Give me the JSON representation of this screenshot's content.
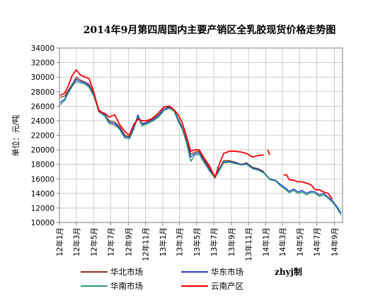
{
  "colors": {
    "huabei": "#8b3a1a",
    "huadong": "#1f3fd6",
    "huanan": "#2e9a6e",
    "yunnan": "#ff0000",
    "grid": "#b0b0b0",
    "axis": "#808080"
  },
  "chart_data": {
    "type": "line",
    "title": "2014年9月第四周国内主要产销区全乳胶现货价格走势图",
    "xlabel": "",
    "ylabel": "单位：元/吨",
    "ylim": [
      10000,
      34000
    ],
    "xlim": [
      "2012-01-01",
      "2014-09-30"
    ],
    "yticks": [
      "34000",
      "32000",
      "30000",
      "28000",
      "26000",
      "24000",
      "22000",
      "20000",
      "18000",
      "16000",
      "14000",
      "12000",
      "10000"
    ],
    "xticks": [
      "12年1月",
      "12年3月",
      "12年5月",
      "12年7月",
      "12年9月",
      "12年11月",
      "13年1月",
      "13年3月",
      "13年5月",
      "13年7月",
      "13年9月",
      "13年11月",
      "14年1月",
      "14年3月",
      "14年5月",
      "14年7月",
      "14年9月"
    ],
    "grid": true,
    "legend_position": "bottom",
    "credit": "zhyj制",
    "series": [
      {
        "name": "华北市场",
        "color_key": "huabei",
        "points": [
          [
            "2012-01-03",
            27200
          ],
          [
            "2012-01-20",
            27400
          ],
          [
            "2012-02-01",
            28200
          ],
          [
            "2012-02-20",
            29300
          ],
          [
            "2012-03-01",
            30000
          ],
          [
            "2012-03-15",
            29600
          ],
          [
            "2012-04-01",
            29300
          ],
          [
            "2012-04-15",
            29000
          ],
          [
            "2012-05-01",
            27800
          ],
          [
            "2012-05-20",
            25500
          ],
          [
            "2012-06-10",
            24800
          ],
          [
            "2012-06-25",
            24000
          ],
          [
            "2012-07-15",
            23800
          ],
          [
            "2012-08-01",
            23200
          ],
          [
            "2012-08-20",
            22000
          ],
          [
            "2012-09-05",
            21800
          ],
          [
            "2012-09-20",
            23000
          ],
          [
            "2012-10-05",
            24500
          ],
          [
            "2012-10-20",
            23600
          ],
          [
            "2012-11-05",
            23800
          ],
          [
            "2012-11-25",
            24200
          ],
          [
            "2012-12-15",
            24700
          ],
          [
            "2013-01-05",
            25600
          ],
          [
            "2013-01-25",
            25800
          ],
          [
            "2013-02-10",
            25500
          ],
          [
            "2013-02-25",
            24200
          ],
          [
            "2013-03-10",
            23200
          ],
          [
            "2013-03-25",
            21500
          ],
          [
            "2013-04-10",
            19400
          ],
          [
            "2013-04-25",
            19700
          ],
          [
            "2013-05-10",
            19800
          ],
          [
            "2013-05-25",
            18800
          ],
          [
            "2013-06-15",
            17500
          ],
          [
            "2013-07-05",
            16400
          ],
          [
            "2013-07-20",
            17400
          ],
          [
            "2013-08-05",
            18500
          ],
          [
            "2013-08-25",
            18500
          ],
          [
            "2013-09-15",
            18300
          ],
          [
            "2013-10-05",
            18000
          ],
          [
            "2013-10-25",
            18200
          ],
          [
            "2013-11-15",
            17600
          ],
          [
            "2013-12-05",
            17400
          ],
          [
            "2013-12-25",
            17000
          ]
        ]
      },
      {
        "name": "华东市场",
        "color_key": "huadong",
        "points": [
          [
            "2012-01-03",
            26500
          ],
          [
            "2012-01-20",
            27000
          ],
          [
            "2012-02-01",
            28000
          ],
          [
            "2012-02-20",
            29200
          ],
          [
            "2012-03-01",
            29700
          ],
          [
            "2012-03-15",
            29400
          ],
          [
            "2012-04-01",
            29200
          ],
          [
            "2012-04-15",
            28800
          ],
          [
            "2012-05-01",
            27600
          ],
          [
            "2012-05-20",
            25400
          ],
          [
            "2012-06-10",
            24800
          ],
          [
            "2012-06-25",
            23800
          ],
          [
            "2012-07-15",
            23600
          ],
          [
            "2012-08-01",
            23000
          ],
          [
            "2012-08-20",
            21800
          ],
          [
            "2012-09-05",
            21700
          ],
          [
            "2012-09-20",
            23000
          ],
          [
            "2012-10-05",
            24800
          ],
          [
            "2012-10-20",
            23500
          ],
          [
            "2012-11-05",
            23700
          ],
          [
            "2012-11-25",
            24100
          ],
          [
            "2012-12-15",
            24600
          ],
          [
            "2013-01-05",
            25600
          ],
          [
            "2013-01-25",
            25900
          ],
          [
            "2013-02-10",
            25500
          ],
          [
            "2013-02-25",
            24100
          ],
          [
            "2013-03-10",
            23100
          ],
          [
            "2013-03-25",
            21300
          ],
          [
            "2013-04-10",
            19000
          ],
          [
            "2013-04-25",
            19500
          ],
          [
            "2013-05-10",
            19600
          ],
          [
            "2013-05-25",
            18600
          ],
          [
            "2013-06-15",
            17300
          ],
          [
            "2013-07-05",
            16300
          ],
          [
            "2013-07-20",
            17300
          ],
          [
            "2013-08-05",
            18300
          ],
          [
            "2013-08-25",
            18400
          ],
          [
            "2013-09-15",
            18200
          ],
          [
            "2013-10-05",
            18000
          ],
          [
            "2013-10-25",
            18100
          ],
          [
            "2013-11-15",
            17500
          ],
          [
            "2013-12-05",
            17300
          ],
          [
            "2013-12-25",
            16900
          ],
          [
            "2014-01-15",
            16000
          ],
          [
            "2014-02-05",
            15800
          ],
          [
            "2014-02-20",
            15300
          ],
          [
            "2014-03-10",
            14800
          ],
          [
            "2014-03-25",
            14300
          ],
          [
            "2014-04-10",
            14600
          ],
          [
            "2014-04-25",
            14200
          ],
          [
            "2014-05-10",
            14400
          ],
          [
            "2014-05-25",
            14000
          ],
          [
            "2014-06-10",
            14300
          ],
          [
            "2014-06-25",
            14200
          ],
          [
            "2014-07-10",
            13800
          ],
          [
            "2014-07-25",
            14000
          ],
          [
            "2014-08-10",
            13500
          ],
          [
            "2014-08-25",
            13000
          ],
          [
            "2014-09-10",
            12200
          ],
          [
            "2014-09-25",
            11300
          ]
        ]
      },
      {
        "name": "华南市场",
        "color_key": "huanan",
        "points": [
          [
            "2012-01-03",
            26200
          ],
          [
            "2012-01-20",
            26800
          ],
          [
            "2012-02-01",
            27800
          ],
          [
            "2012-02-20",
            29000
          ],
          [
            "2012-03-01",
            29400
          ],
          [
            "2012-03-15",
            29200
          ],
          [
            "2012-04-01",
            29000
          ],
          [
            "2012-04-15",
            28600
          ],
          [
            "2012-05-01",
            27400
          ],
          [
            "2012-05-20",
            25200
          ],
          [
            "2012-06-10",
            24600
          ],
          [
            "2012-06-25",
            23600
          ],
          [
            "2012-07-15",
            23400
          ],
          [
            "2012-08-01",
            22800
          ],
          [
            "2012-08-20",
            21600
          ],
          [
            "2012-09-05",
            21500
          ],
          [
            "2012-09-20",
            22800
          ],
          [
            "2012-10-05",
            24500
          ],
          [
            "2012-10-20",
            23300
          ],
          [
            "2012-11-05",
            23500
          ],
          [
            "2012-11-25",
            23900
          ],
          [
            "2012-12-15",
            24400
          ],
          [
            "2013-01-05",
            25400
          ],
          [
            "2013-01-25",
            25700
          ],
          [
            "2013-02-10",
            25300
          ],
          [
            "2013-02-25",
            23900
          ],
          [
            "2013-03-10",
            22900
          ],
          [
            "2013-03-25",
            21100
          ],
          [
            "2013-04-10",
            18400
          ],
          [
            "2013-04-25",
            19300
          ],
          [
            "2013-05-10",
            19400
          ],
          [
            "2013-05-25",
            18400
          ],
          [
            "2013-06-15",
            17100
          ],
          [
            "2013-07-05",
            16100
          ],
          [
            "2013-07-20",
            17100
          ],
          [
            "2013-08-05",
            18200
          ],
          [
            "2013-08-25",
            18300
          ],
          [
            "2013-09-15",
            18100
          ],
          [
            "2013-10-05",
            17900
          ],
          [
            "2013-10-25",
            18000
          ],
          [
            "2013-11-15",
            17400
          ],
          [
            "2013-12-05",
            17200
          ],
          [
            "2013-12-25",
            16800
          ],
          [
            "2014-01-15",
            15900
          ],
          [
            "2014-02-05",
            15700
          ],
          [
            "2014-02-20",
            15100
          ],
          [
            "2014-03-10",
            14600
          ],
          [
            "2014-03-25",
            14100
          ],
          [
            "2014-04-10",
            14400
          ],
          [
            "2014-04-25",
            14000
          ],
          [
            "2014-05-10",
            14200
          ],
          [
            "2014-05-25",
            13800
          ],
          [
            "2014-06-10",
            14100
          ],
          [
            "2014-06-25",
            14000
          ],
          [
            "2014-07-10",
            13600
          ],
          [
            "2014-07-25",
            13800
          ],
          [
            "2014-08-10",
            13300
          ],
          [
            "2014-08-25",
            12800
          ],
          [
            "2014-09-10",
            12000
          ],
          [
            "2014-09-25",
            11000
          ]
        ]
      },
      {
        "name": "云南产区",
        "color_key": "yunnan",
        "points": [
          [
            "2012-01-03",
            27500
          ],
          [
            "2012-01-20",
            27800
          ],
          [
            "2012-02-01",
            28800
          ],
          [
            "2012-02-15",
            30200
          ],
          [
            "2012-03-01",
            31000
          ],
          [
            "2012-03-15",
            30300
          ],
          [
            "2012-04-01",
            30000
          ],
          [
            "2012-04-15",
            29800
          ],
          [
            "2012-05-01",
            28000
          ],
          [
            "2012-05-20",
            25300
          ],
          [
            "2012-06-10",
            25000
          ],
          [
            "2012-06-25",
            24500
          ],
          [
            "2012-07-15",
            24800
          ],
          [
            "2012-08-01",
            23500
          ],
          [
            "2012-08-20",
            22500
          ],
          [
            "2012-09-05",
            22000
          ],
          [
            "2012-09-20",
            23500
          ],
          [
            "2012-10-05",
            24200
          ],
          [
            "2012-10-20",
            24000
          ],
          [
            "2012-11-05",
            24000
          ],
          [
            "2012-11-25",
            24300
          ],
          [
            "2012-12-15",
            25000
          ],
          [
            "2013-01-05",
            25900
          ],
          [
            "2013-01-25",
            26000
          ],
          [
            "2013-02-10",
            25500
          ],
          [
            "2013-02-25",
            24800
          ],
          [
            "2013-03-10",
            23800
          ],
          [
            "2013-03-25",
            22000
          ],
          [
            "2013-04-10",
            19800
          ],
          [
            "2013-04-25",
            20000
          ],
          [
            "2013-05-10",
            20000
          ],
          [
            "2013-05-25",
            19000
          ],
          [
            "2013-06-15",
            17800
          ],
          [
            "2013-07-05",
            16200
          ],
          [
            "2013-07-20",
            18000
          ],
          [
            "2013-08-05",
            19500
          ],
          [
            "2013-08-25",
            19800
          ],
          [
            "2013-09-15",
            19800
          ],
          [
            "2013-10-05",
            19700
          ],
          [
            "2013-10-25",
            19500
          ],
          [
            "2013-11-15",
            19000
          ],
          [
            "2013-12-05",
            19200
          ],
          [
            "2013-12-25",
            19300
          ],
          null,
          [
            "2014-01-08",
            20000
          ],
          [
            "2014-01-15",
            19300
          ],
          null,
          [
            "2014-03-05",
            16500
          ],
          [
            "2014-03-15",
            16600
          ],
          [
            "2014-03-25",
            15900
          ],
          [
            "2014-04-10",
            15800
          ],
          [
            "2014-04-25",
            15600
          ],
          [
            "2014-05-10",
            15600
          ],
          [
            "2014-05-25",
            15400
          ],
          [
            "2014-06-10",
            15200
          ],
          [
            "2014-06-25",
            14500
          ],
          [
            "2014-07-10",
            14500
          ],
          [
            "2014-07-25",
            14200
          ],
          [
            "2014-08-10",
            14000
          ],
          [
            "2014-08-25",
            13200
          ]
        ]
      }
    ]
  }
}
